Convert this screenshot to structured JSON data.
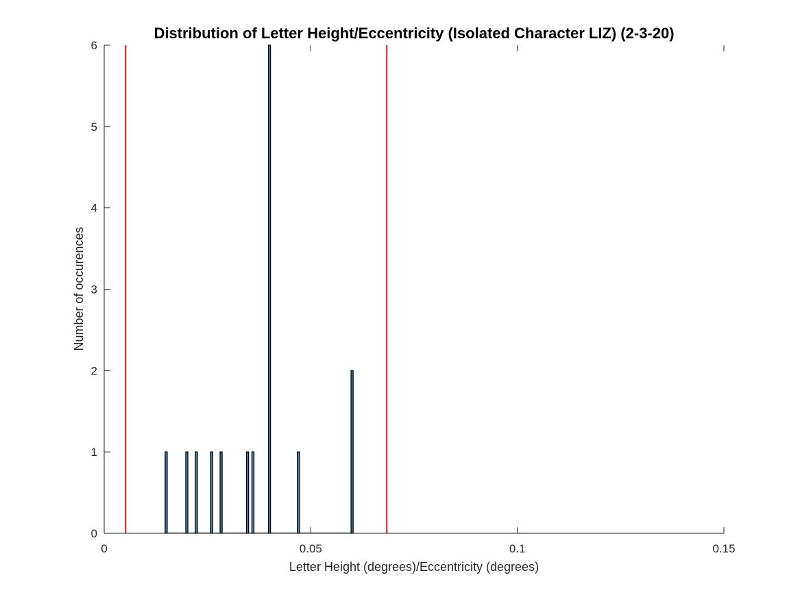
{
  "chart_data": {
    "type": "bar",
    "title": "Distribution of Letter Height/Eccentricity (Isolated Character LIZ) (2-3-20)",
    "xlabel": "Letter Height (degrees)/Eccentricity (degrees)",
    "ylabel": "Number of occurences",
    "xlim": [
      0,
      0.15
    ],
    "ylim": [
      0,
      6
    ],
    "xticks": [
      0,
      0.05,
      0.1,
      0.15
    ],
    "xtick_labels": [
      "0",
      "0.05",
      "0.1",
      "0.15"
    ],
    "yticks": [
      0,
      1,
      2,
      3,
      4,
      5,
      6
    ],
    "ytick_labels": [
      "0",
      "1",
      "2",
      "3",
      "4",
      "5",
      "6"
    ],
    "grid": false,
    "bar_color": "#4a86b8",
    "bar_edge_color": "#000000",
    "bar_width": 0.0005,
    "bars": [
      {
        "x": 0.015,
        "count": 1
      },
      {
        "x": 0.02,
        "count": 1
      },
      {
        "x": 0.0223,
        "count": 1
      },
      {
        "x": 0.026,
        "count": 1
      },
      {
        "x": 0.0283,
        "count": 1
      },
      {
        "x": 0.0347,
        "count": 1
      },
      {
        "x": 0.036,
        "count": 1
      },
      {
        "x": 0.04,
        "count": 6
      },
      {
        "x": 0.047,
        "count": 1
      },
      {
        "x": 0.06,
        "count": 2
      }
    ],
    "reference_lines": [
      {
        "x": 0.0052,
        "color": "#e8121b"
      },
      {
        "x": 0.0684,
        "color": "#e8121b"
      }
    ]
  }
}
